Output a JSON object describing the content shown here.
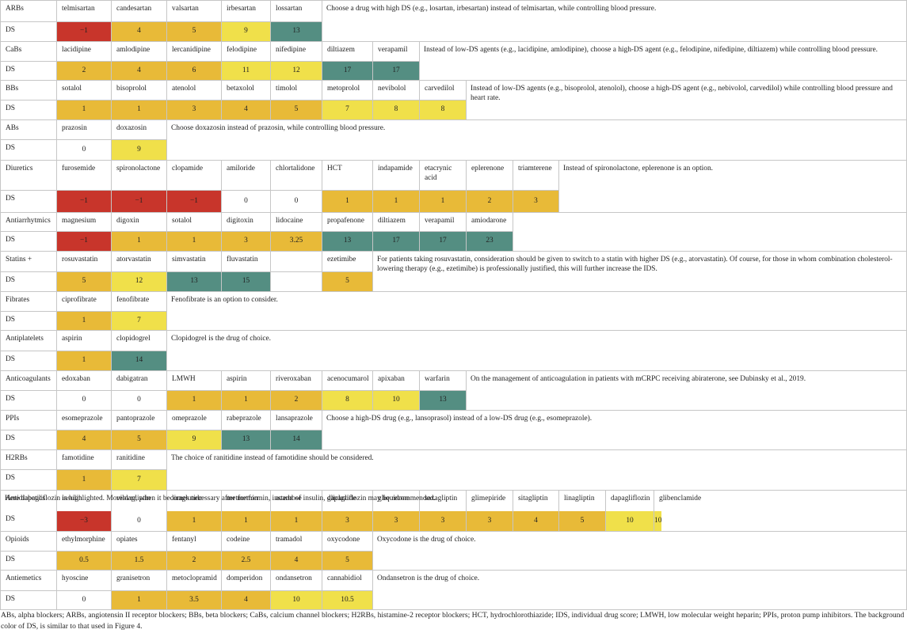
{
  "colors": {
    "red": "#c8352b",
    "orange": "#e8ba38",
    "yellow": "#f0e04a",
    "teal": "#548e82",
    "white": "#ffffff",
    "border": "#c6c6c6"
  },
  "groups": [
    {
      "name": "ARBs",
      "ds_label": "DS",
      "drugs": [
        {
          "name": "telmisartan",
          "ds": "−1",
          "color": "red"
        },
        {
          "name": "candesartan",
          "ds": "4",
          "color": "orange"
        },
        {
          "name": "valsartan",
          "ds": "5",
          "color": "orange"
        },
        {
          "name": "irbesartan",
          "ds": "9",
          "color": "yellow"
        },
        {
          "name": "lossartan",
          "ds": "13",
          "color": "teal"
        }
      ],
      "note": "Choose a drug with high DS (e.g., losartan, irbesartan) instead of telmisartan, while controlling blood pressure."
    },
    {
      "name": "CaBs",
      "ds_label": "DS",
      "drugs": [
        {
          "name": "lacidipine",
          "ds": "2",
          "color": "orange"
        },
        {
          "name": "amlodipine",
          "ds": "4",
          "color": "orange"
        },
        {
          "name": "lercanidipine",
          "ds": "6",
          "color": "orange"
        },
        {
          "name": "felodipine",
          "ds": "11",
          "color": "yellow"
        },
        {
          "name": "nifedipine",
          "ds": "12",
          "color": "yellow"
        },
        {
          "name": "diltiazem",
          "ds": "17",
          "color": "teal"
        },
        {
          "name": "verapamil",
          "ds": "17",
          "color": "teal"
        }
      ],
      "note": "Instead of low-DS agents (e.g., lacidipine, amlodipine), choose a high-DS agent (e.g., felodipine, nifedipine, diltiazem) while controlling blood pressure."
    },
    {
      "name": "BBs",
      "ds_label": "DS",
      "drugs": [
        {
          "name": "sotalol",
          "ds": "1",
          "color": "orange"
        },
        {
          "name": "bisoprolol",
          "ds": "1",
          "color": "orange"
        },
        {
          "name": "atenolol",
          "ds": "3",
          "color": "orange"
        },
        {
          "name": "betaxolol",
          "ds": "4",
          "color": "orange"
        },
        {
          "name": "timolol",
          "ds": "5",
          "color": "orange"
        },
        {
          "name": "metoprolol",
          "ds": "7",
          "color": "yellow"
        },
        {
          "name": "nevibolol",
          "ds": "8",
          "color": "yellow"
        },
        {
          "name": "carvedilol",
          "ds": "8",
          "color": "yellow"
        }
      ],
      "note": "Instead of low-DS agents (e.g., bisoprolol, atenolol), choose a high-DS agent (e.g., nebivolol, carvedilol) while controlling blood pressure and heart rate."
    },
    {
      "name": "ABs",
      "ds_label": "DS",
      "drugs": [
        {
          "name": "prazosin",
          "ds": "0",
          "color": "white"
        },
        {
          "name": "doxazosin",
          "ds": "9",
          "color": "yellow"
        }
      ],
      "note": "Choose doxazosin instead of prazosin, while controlling blood pressure."
    },
    {
      "name": "Diuretics",
      "ds_label": "DS",
      "drugs": [
        {
          "name": "furosemide",
          "ds": "−1",
          "color": "red"
        },
        {
          "name": "spironolactone",
          "ds": "−1",
          "color": "red"
        },
        {
          "name": "clopamide",
          "ds": "−1",
          "color": "red"
        },
        {
          "name": "amiloride",
          "ds": "0",
          "color": "white"
        },
        {
          "name": "chlortalidone",
          "ds": "0",
          "color": "white"
        },
        {
          "name": "HCT",
          "ds": "1",
          "color": "orange"
        },
        {
          "name": "indapamide",
          "ds": "1",
          "color": "orange"
        },
        {
          "name": "etacrynic acid",
          "ds": "1",
          "color": "orange"
        },
        {
          "name": "eplerenone",
          "ds": "2",
          "color": "orange"
        },
        {
          "name": "triamterene",
          "ds": "3",
          "color": "orange"
        }
      ],
      "note": "Instead of spironolactone, eplerenone is an option."
    },
    {
      "name": "Antiarrhytmics",
      "ds_label": "DS",
      "drugs": [
        {
          "name": "magnesium",
          "ds": "−1",
          "color": "red"
        },
        {
          "name": "digoxin",
          "ds": "1",
          "color": "orange"
        },
        {
          "name": "sotalol",
          "ds": "1",
          "color": "orange"
        },
        {
          "name": "digitoxin",
          "ds": "3",
          "color": "orange"
        },
        {
          "name": "lidocaine",
          "ds": "3.25",
          "color": "orange"
        },
        {
          "name": "propafenone",
          "ds": "13",
          "color": "teal"
        },
        {
          "name": "diltiazem",
          "ds": "17",
          "color": "teal"
        },
        {
          "name": "verapamil",
          "ds": "17",
          "color": "teal"
        },
        {
          "name": "amiodarone",
          "ds": "23",
          "color": "teal"
        }
      ],
      "note": ""
    },
    {
      "name": "Statins +",
      "ds_label": "DS",
      "drugs": [
        {
          "name": "rosuvastatin",
          "ds": "5",
          "color": "orange"
        },
        {
          "name": "atorvastatin",
          "ds": "12",
          "color": "yellow"
        },
        {
          "name": "simvastatin",
          "ds": "13",
          "color": "teal"
        },
        {
          "name": "fluvastatin",
          "ds": "15",
          "color": "teal"
        },
        {
          "name": "",
          "ds": "",
          "color": "white"
        },
        {
          "name": "ezetimibe",
          "ds": "5",
          "color": "orange"
        }
      ],
      "note": "For patients taking rosuvastatin, consideration should be given to switch to a statin with higher DS (e.g., atorvastatin). Of course, for those in whom combination cholesterol-lowering therapy (e.g., ezetimibe) is professionally justified, this will further increase the IDS."
    },
    {
      "name": "Fibrates",
      "ds_label": "DS",
      "drugs": [
        {
          "name": "ciprofibrate",
          "ds": "1",
          "color": "orange"
        },
        {
          "name": "fenofibrate",
          "ds": "7",
          "color": "yellow"
        }
      ],
      "note": "Fenofibrate is an option to consider."
    },
    {
      "name": "Antiplatelets",
      "ds_label": "DS",
      "drugs": [
        {
          "name": "aspirin",
          "ds": "1",
          "color": "orange"
        },
        {
          "name": "clopidogrel",
          "ds": "14",
          "color": "teal"
        }
      ],
      "note": "Clopidogrel is the drug of choice."
    },
    {
      "name": "Anticoagulants",
      "ds_label": "DS",
      "drugs": [
        {
          "name": "edoxaban",
          "ds": "0",
          "color": "white"
        },
        {
          "name": "dabigatran",
          "ds": "0",
          "color": "white"
        },
        {
          "name": "LMWH",
          "ds": "1",
          "color": "orange"
        },
        {
          "name": "aspirin",
          "ds": "1",
          "color": "orange"
        },
        {
          "name": "riveroxaban",
          "ds": "2",
          "color": "orange"
        },
        {
          "name": "acenocumarol",
          "ds": "8",
          "color": "yellow"
        },
        {
          "name": "apixaban",
          "ds": "10",
          "color": "yellow"
        },
        {
          "name": "warfarin",
          "ds": "13",
          "color": "teal"
        }
      ],
      "note": "On the management of anticoagulation in patients with mCRPC receiving abiraterone, see Dubinsky et al., 2019."
    },
    {
      "name": "PPIs",
      "ds_label": "DS",
      "drugs": [
        {
          "name": "esomeprazole",
          "ds": "4",
          "color": "orange"
        },
        {
          "name": "pantoprazole",
          "ds": "5",
          "color": "orange"
        },
        {
          "name": "omeprazole",
          "ds": "9",
          "color": "yellow"
        },
        {
          "name": "rabeprazole",
          "ds": "13",
          "color": "teal"
        },
        {
          "name": "lansaprazole",
          "ds": "14",
          "color": "teal"
        }
      ],
      "note": "Choose a high-DS drug (e.g., lansoprasol) instead of a low-DS drug (e.g., esomeprazole)."
    },
    {
      "name": "H2RBs",
      "ds_label": "DS",
      "drugs": [
        {
          "name": "famotidine",
          "ds": "1",
          "color": "orange"
        },
        {
          "name": "ranitidine",
          "ds": "7",
          "color": "yellow"
        }
      ],
      "note": "The choice of ranitidine instead of famotidine should be considered."
    },
    {
      "name": "Antidiabetics",
      "ds_label": "DS",
      "drugs": [
        {
          "name": "insulin",
          "ds": "−3",
          "color": "red"
        },
        {
          "name": "vildagliptin",
          "ds": "0",
          "color": "white"
        },
        {
          "name": "liraglutide",
          "ds": "1",
          "color": "orange"
        },
        {
          "name": "metformin",
          "ds": "1",
          "color": "orange"
        },
        {
          "name": "acarbose",
          "ds": "1",
          "color": "orange"
        },
        {
          "name": "gliclazide",
          "ds": "3",
          "color": "orange"
        },
        {
          "name": "gliquidone",
          "ds": "3",
          "color": "orange"
        },
        {
          "name": "saxagliptin",
          "ds": "3",
          "color": "orange"
        },
        {
          "name": "glimepiride",
          "ds": "3",
          "color": "orange"
        },
        {
          "name": "sitagliptin",
          "ds": "4",
          "color": "orange"
        },
        {
          "name": "linagliptin",
          "ds": "5",
          "color": "orange"
        },
        {
          "name": "dapagliflozin",
          "ds": "10",
          "color": "yellow"
        },
        {
          "name": "glibenclamide",
          "ds": "10",
          "color": "yellow"
        }
      ],
      "note": "Here dapagliflozin is highlighted. Moreover, when it becomes necessary after metformin, instead of insulin, dapagliflozin may be recommended."
    },
    {
      "name": "Opioids",
      "ds_label": "DS",
      "drugs": [
        {
          "name": "ethylmorphine",
          "ds": "0.5",
          "color": "orange"
        },
        {
          "name": "opiates",
          "ds": "1.5",
          "color": "orange"
        },
        {
          "name": "fentanyl",
          "ds": "2",
          "color": "orange"
        },
        {
          "name": "codeine",
          "ds": "2.5",
          "color": "orange"
        },
        {
          "name": "tramadol",
          "ds": "4",
          "color": "orange"
        },
        {
          "name": "oxycodone",
          "ds": "5",
          "color": "orange"
        }
      ],
      "note": "Oxycodone is the drug of choice."
    },
    {
      "name": "Antiemetics",
      "ds_label": "DS",
      "drugs": [
        {
          "name": "hyoscine",
          "ds": "0",
          "color": "white"
        },
        {
          "name": "granisetron",
          "ds": "1",
          "color": "orange"
        },
        {
          "name": "metoclopramid",
          "ds": "3.5",
          "color": "orange"
        },
        {
          "name": "domperidon",
          "ds": "4",
          "color": "orange"
        },
        {
          "name": "ondansetron",
          "ds": "10",
          "color": "yellow"
        },
        {
          "name": "cannabidiol",
          "ds": "10.5",
          "color": "yellow"
        }
      ],
      "note": "Ondansetron is the drug of choice."
    }
  ],
  "footnote": "ABs, alpha blockers; ARBs, angiotensin II receptor blockers; BBs, beta blockers; CaBs, calcium channel blockers; H2RBs, histamine-2 receptor blockers; HCT, hydrochlorothiazide; IDS, individual drug score; LMWH, low molecular weight heparin; PPIs, proton pump inhibitors. The background color of DS, is similar to that used in Figure 4."
}
